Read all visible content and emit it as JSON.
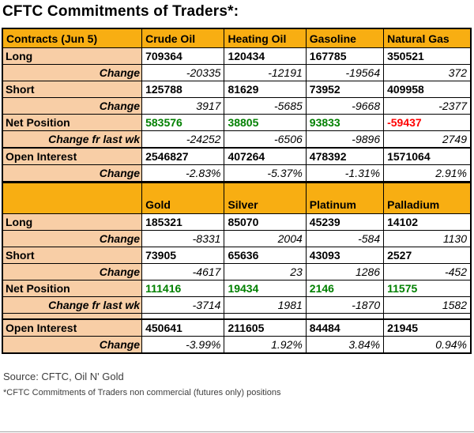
{
  "title": "CFTC Commitments of Traders*:",
  "chart_data": {
    "type": "table",
    "title": "CFTC Commitments of Traders*:",
    "sections": [
      {
        "header": {
          "label": "Contracts (Jun 5)",
          "columns": [
            "Crude Oil",
            "Heating Oil",
            "Gasoline",
            "Natural Gas"
          ]
        },
        "rows": [
          {
            "label": "Long",
            "style": "pos",
            "values": [
              "709364",
              "120434",
              "167785",
              "350521"
            ]
          },
          {
            "label": "Change",
            "style": "chg",
            "values": [
              "-20335",
              "-12191",
              "-19564",
              "372"
            ]
          },
          {
            "label": "Short",
            "style": "pos",
            "values": [
              "125788",
              "81629",
              "73952",
              "409958"
            ]
          },
          {
            "label": "Change",
            "style": "chg",
            "values": [
              "3917",
              "-5685",
              "-9668",
              "-2377"
            ]
          },
          {
            "label": "Net Position",
            "style": "pos",
            "values": [
              "583576",
              "38805",
              "93833",
              "-59437"
            ],
            "value_colors": [
              "green",
              "green",
              "green",
              "red"
            ]
          },
          {
            "label": "Change fr last wk",
            "style": "chg",
            "values": [
              "-24252",
              "-6506",
              "-9896",
              "2749"
            ],
            "label_bold": true
          },
          {
            "label": "Open Interest",
            "style": "pos",
            "thick_top": true,
            "values": [
              "2546827",
              "407264",
              "478392",
              "1571064"
            ]
          },
          {
            "label": "Change",
            "style": "chg",
            "values": [
              "-2.83%",
              "-5.37%",
              "-1.31%",
              "2.91%"
            ]
          }
        ]
      },
      {
        "header": {
          "label": "",
          "columns": [
            "Gold",
            "Silver",
            "Platinum",
            "Palladium"
          ]
        },
        "rows": [
          {
            "label": "Long",
            "style": "pos",
            "values": [
              "185321",
              "85070",
              "45239",
              "14102"
            ]
          },
          {
            "label": "Change",
            "style": "chg",
            "values": [
              "-8331",
              "2004",
              "-584",
              "1130"
            ]
          },
          {
            "label": "Short",
            "style": "pos",
            "values": [
              "73905",
              "65636",
              "43093",
              "2527"
            ]
          },
          {
            "label": "Change",
            "style": "chg",
            "values": [
              "-4617",
              "23",
              "1286",
              "-452"
            ]
          },
          {
            "label": "Net Position",
            "style": "pos",
            "values": [
              "111416",
              "19434",
              "2146",
              "11575"
            ],
            "value_colors": [
              "green",
              "green",
              "green",
              "green"
            ]
          },
          {
            "label": "Change fr last wk",
            "style": "chg",
            "values": [
              "-3714",
              "1981",
              "-1870",
              "1582"
            ],
            "label_bold": true
          },
          {
            "label": "",
            "style": "chg",
            "spacer": true,
            "values": [
              "",
              "",
              "",
              ""
            ]
          },
          {
            "label": "Open Interest",
            "style": "pos",
            "thick_top": true,
            "values": [
              "450641",
              "211605",
              "84484",
              "21945"
            ]
          },
          {
            "label": "Change",
            "style": "chg",
            "values": [
              "-3.99%",
              "1.92%",
              "3.84%",
              "0.94%"
            ]
          }
        ]
      }
    ]
  },
  "footer": {
    "source": "Source: CFTC, Oil N' Gold",
    "footnote": "*CFTC Commitments of Traders non commercial (futures only) positions"
  },
  "colors": {
    "header_bg": "#F8AE12",
    "label_bg": "#F8CEA6",
    "green": "#008000",
    "red": "#FF0000",
    "border": "#000000",
    "footer_text": "#3D3D3D",
    "bottom_line": "#A6A6A6"
  }
}
